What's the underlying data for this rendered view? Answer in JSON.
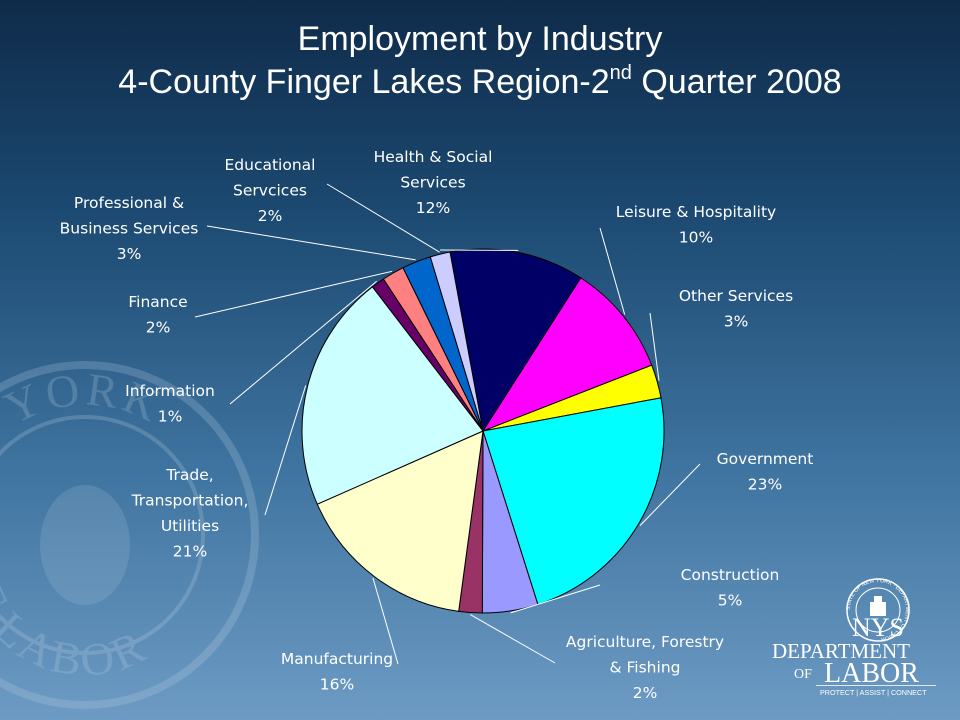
{
  "title": {
    "line1": "Employment by Industry",
    "line2_prefix": "4-County Finger Lakes Region-2",
    "line2_sup": "nd",
    "line2_suffix": " Quarter 2008"
  },
  "chart_data": {
    "type": "pie",
    "title": "Employment by Industry 4-County Finger Lakes Region-2nd Quarter 2008",
    "start_angle_deg": -10.5,
    "direction": "clockwise",
    "slices": [
      {
        "label": [
          "Health & Social",
          "Services"
        ],
        "percent_label": "12%",
        "value": 12.1,
        "color": "#000066"
      },
      {
        "label": [
          "Leisure & Hospitality"
        ],
        "percent_label": "10%",
        "value": 10.1,
        "color": "#ff00ff"
      },
      {
        "label": [
          "Other Services"
        ],
        "percent_label": "3%",
        "value": 3.0,
        "color": "#ffff00"
      },
      {
        "label": [
          "Government"
        ],
        "percent_label": "23%",
        "value": 23.2,
        "color": "#00ffff"
      },
      {
        "label": [
          "Construction"
        ],
        "percent_label": "5%",
        "value": 5.0,
        "color": "#9999ff"
      },
      {
        "label": [
          "Agriculture, Forestry",
          "& Fishing"
        ],
        "percent_label": "2%",
        "value": 2.1,
        "color": "#993366"
      },
      {
        "label": [
          "Manufacturing"
        ],
        "percent_label": "16%",
        "value": 16.4,
        "color": "#ffffcc"
      },
      {
        "label": [
          "Trade,",
          "Transportation,",
          "Utilities"
        ],
        "percent_label": "21%",
        "value": 21.3,
        "color": "#ccffff"
      },
      {
        "label": [
          "Information"
        ],
        "percent_label": "1%",
        "value": 1.2,
        "color": "#660066"
      },
      {
        "label": [
          "Finance"
        ],
        "percent_label": "2%",
        "value": 2.0,
        "color": "#ff8080"
      },
      {
        "label": [
          "Professional &",
          "Business Services"
        ],
        "percent_label": "3%",
        "value": 2.6,
        "color": "#0066cc"
      },
      {
        "label": [
          "Educational",
          "Servcices"
        ],
        "percent_label": "2%",
        "value": 1.8,
        "color": "#ccccff"
      }
    ]
  },
  "branding": {
    "logo_lines": [
      "NYS",
      "DEPARTMENT",
      "OF",
      "LABOR"
    ],
    "tagline": "PROTECT | ASSIST | CONNECT",
    "seal_ring_text": "STATE OF NEW YORK · DEPARTMENT OF LABOR"
  },
  "watermark": {
    "text_top": "NEW YORK",
    "text_bottom": "OF LABOR"
  },
  "colors": {
    "text": "#ffffff",
    "slice_outline": "#000000"
  }
}
